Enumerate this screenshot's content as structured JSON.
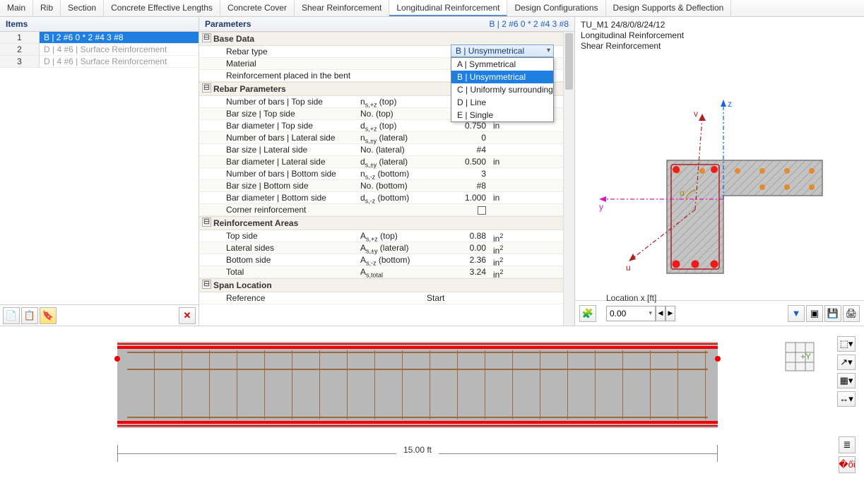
{
  "tabs": [
    "Main",
    "Rib",
    "Section",
    "Concrete Effective Lengths",
    "Concrete Cover",
    "Shear Reinforcement",
    "Longitudinal Reinforcement",
    "Design Configurations",
    "Design Supports & Deflection"
  ],
  "active_tab": 6,
  "items": {
    "title": "Items",
    "rows": [
      {
        "n": "1",
        "t": "B | 2 #6 0 * 2 #4 3 #8",
        "sel": true
      },
      {
        "n": "2",
        "t": "D | 4 #6 | Surface Reinforcement",
        "dim": true
      },
      {
        "n": "3",
        "t": "D | 4 #6 | Surface Reinforcement",
        "dim": true
      }
    ]
  },
  "params": {
    "title": "Parameters",
    "crumb": "B | 2 #6 0 * 2 #4 3 #8",
    "sections": [
      {
        "hdr": "Base Data",
        "rows": [
          {
            "l": "Rebar type",
            "dd": "B | Unsymmetrical"
          },
          {
            "l": "Material"
          },
          {
            "l": "Reinforcement placed in the bent corner..."
          }
        ]
      },
      {
        "hdr": "Rebar Parameters",
        "rows": [
          {
            "l": "Number of bars | Top side",
            "s": "n_s,+z (top)"
          },
          {
            "l": "Bar size | Top side",
            "s": "No. (top)",
            "v": "#6"
          },
          {
            "l": "Bar diameter | Top side",
            "s": "d_s,+z (top)",
            "v": "0.750",
            "u": "in"
          },
          {
            "l": "Number of bars | Lateral side",
            "s": "n_s,±y (lateral)",
            "v": "0"
          },
          {
            "l": "Bar size | Lateral side",
            "s": "No. (lateral)",
            "v": "#4"
          },
          {
            "l": "Bar diameter | Lateral side",
            "s": "d_s,±y (lateral)",
            "v": "0.500",
            "u": "in"
          },
          {
            "l": "Number of bars | Bottom side",
            "s": "n_s,-z (bottom)",
            "v": "3"
          },
          {
            "l": "Bar size | Bottom side",
            "s": "No. (bottom)",
            "v": "#8"
          },
          {
            "l": "Bar diameter | Bottom side",
            "s": "d_s,-z (bottom)",
            "v": "1.000",
            "u": "in"
          },
          {
            "l": "Corner reinforcement",
            "chk": true
          }
        ]
      },
      {
        "hdr": "Reinforcement Areas",
        "rows": [
          {
            "l": "Top side",
            "s": "A_s,+z (top)",
            "v": "0.88",
            "u": "in²"
          },
          {
            "l": "Lateral sides",
            "s": "A_s,±y (lateral)",
            "v": "0.00",
            "u": "in²"
          },
          {
            "l": "Bottom side",
            "s": "A_s,-z (bottom)",
            "v": "2.36",
            "u": "in²"
          },
          {
            "l": "Total",
            "s": "A_s,total",
            "v": "3.24",
            "u": "in²"
          }
        ]
      },
      {
        "hdr": "Span Location",
        "rows": [
          {
            "l": "Reference",
            "v2": "Start"
          }
        ]
      }
    ],
    "dropdown": {
      "options": [
        "A | Symmetrical",
        "B | Unsymmetrical",
        "C | Uniformly surrounding",
        "D | Line",
        "E | Single"
      ],
      "hl": 1
    }
  },
  "viz": {
    "lines": [
      "TU_M1 24/8/0/8/24/12",
      "Longitudinal Reinforcement",
      "Shear Reinforcement"
    ],
    "loc_label": "Location x [ft]",
    "loc_value": "0.00",
    "colors": {
      "section_fill": "#c4c4c4",
      "section_stroke": "#888",
      "rebar_red": "#ef1a1a",
      "rebar_orange": "#e58b2f",
      "axis_z": "#1a66e6",
      "axis_y": "#d418c8",
      "axis_uv": "#b02020"
    }
  },
  "beam": {
    "length_label": "15.00 ft",
    "colors": {
      "concrete": "#b8b8b8",
      "rebar_line": "#f00000",
      "stirrup": "#9c6b3f"
    }
  }
}
